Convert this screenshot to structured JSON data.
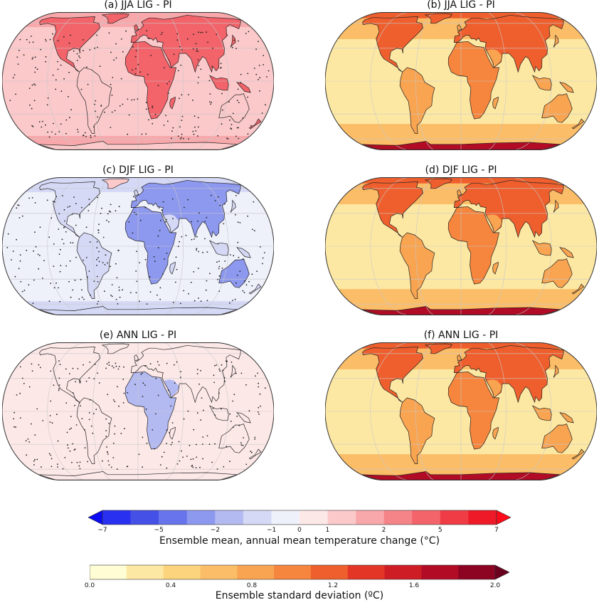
{
  "panels": [
    {
      "id": "a",
      "title": "(a) JJA LIG - PI",
      "kind": "mean",
      "base": 3,
      "dots": true
    },
    {
      "id": "b",
      "title": "(b) JJA LIG - PI",
      "kind": "sd",
      "base": 1,
      "dots": false
    },
    {
      "id": "c",
      "title": "(c) DJF LIG - PI",
      "kind": "mean",
      "base": -2,
      "dots": true
    },
    {
      "id": "d",
      "title": "(d) DJF LIG - PI",
      "kind": "sd",
      "base": 1,
      "dots": false
    },
    {
      "id": "e",
      "title": "(e) ANN LIG - PI",
      "kind": "mean",
      "base": 0,
      "dots": true
    },
    {
      "id": "f",
      "title": "(f) ANN LIG - PI",
      "kind": "sd",
      "base": 1,
      "dots": false
    }
  ],
  "colorbar_mean": {
    "label": "Ensemble mean, annual mean temperature change (°C)",
    "ticks": [
      "−7",
      "−5",
      "−2",
      "−1",
      "0",
      "1",
      "2",
      "5",
      "7"
    ],
    "colors": [
      "#0b0bf4",
      "#2a30f0",
      "#4550e6",
      "#6874ec",
      "#8d98ef",
      "#b3baf2",
      "#d6d9f6",
      "#eef0fa",
      "#fde8e8",
      "#fbc9ca",
      "#f8a8ab",
      "#f58489",
      "#f2636a",
      "#ef3c45",
      "#ee1a28",
      "#ff0a1a"
    ]
  },
  "colorbar_sd": {
    "label": "Ensemble standard deviation (ºC)",
    "ticks": [
      "0.0",
      "0.4",
      "0.8",
      "1.2",
      "1.6",
      "2.0"
    ],
    "colors": [
      "#fffdd4",
      "#fde8a3",
      "#fcd47e",
      "#fbbd67",
      "#f9a451",
      "#f6853d",
      "#ef5f2d",
      "#e33626",
      "#cf1d26",
      "#b10b26",
      "#8d0322",
      "#6a001e"
    ]
  }
}
